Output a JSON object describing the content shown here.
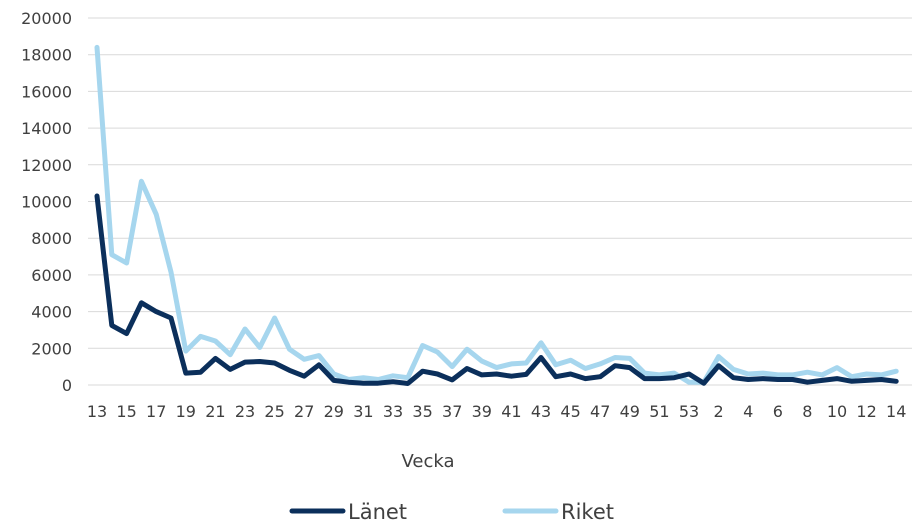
{
  "chart_data": {
    "type": "line",
    "title": "",
    "xlabel": "Vecka",
    "ylabel": "",
    "ylim": [
      0,
      20000
    ],
    "y_ticks": [
      "0",
      "2000",
      "4000",
      "6000",
      "8000",
      "10000",
      "12000",
      "14000",
      "16000",
      "18000",
      "20000"
    ],
    "grid": "horizontal",
    "legend_position": "bottom",
    "categories": [
      "13",
      "14",
      "15",
      "16",
      "17",
      "18",
      "19",
      "20",
      "21",
      "22",
      "23",
      "24",
      "25",
      "26",
      "27",
      "28",
      "29",
      "30",
      "31",
      "32",
      "33",
      "34",
      "35",
      "36",
      "37",
      "38",
      "39",
      "40",
      "41",
      "42",
      "43",
      "44",
      "45",
      "46",
      "47",
      "48",
      "49",
      "50",
      "51",
      "52",
      "53",
      "1",
      "2",
      "3",
      "4",
      "5",
      "6",
      "7",
      "8",
      "9",
      "10",
      "11",
      "12",
      "13",
      "14"
    ],
    "x_tick_labels": [
      "13",
      "",
      "15",
      "",
      "17",
      "",
      "19",
      "",
      "21",
      "",
      "23",
      "",
      "25",
      "",
      "27",
      "",
      "29",
      "",
      "31",
      "",
      "33",
      "",
      "35",
      "",
      "37",
      "",
      "39",
      "",
      "41",
      "",
      "43",
      "",
      "45",
      "",
      "47",
      "",
      "49",
      "",
      "51",
      "",
      "53",
      "",
      "2",
      "",
      "4",
      "",
      "6",
      "",
      "8",
      "",
      "10",
      "",
      "12",
      "",
      "14"
    ],
    "series": [
      {
        "name": "Länet",
        "color": "#0b2f5b",
        "values": [
          10300,
          3250,
          2800,
          4480,
          4000,
          3650,
          650,
          700,
          1450,
          850,
          1250,
          1280,
          1200,
          800,
          480,
          1100,
          250,
          150,
          100,
          100,
          180,
          80,
          750,
          600,
          280,
          900,
          550,
          600,
          480,
          580,
          1500,
          450,
          600,
          350,
          450,
          1050,
          950,
          350,
          350,
          400,
          600,
          100,
          1050,
          400,
          300,
          350,
          300,
          300,
          150,
          250,
          350,
          200,
          250,
          300,
          200
        ]
      },
      {
        "name": "Riket",
        "color": "#a6d6ee",
        "values": [
          18400,
          7100,
          6650,
          11100,
          9300,
          6150,
          1850,
          2650,
          2400,
          1650,
          3050,
          2050,
          3650,
          1950,
          1400,
          1600,
          600,
          300,
          400,
          300,
          500,
          400,
          2150,
          1800,
          1000,
          1950,
          1300,
          950,
          1150,
          1200,
          2300,
          1100,
          1350,
          900,
          1150,
          1500,
          1450,
          650,
          550,
          650,
          150,
          150,
          1550,
          850,
          600,
          650,
          550,
          550,
          700,
          550,
          950,
          450,
          600,
          550,
          750
        ]
      }
    ]
  }
}
